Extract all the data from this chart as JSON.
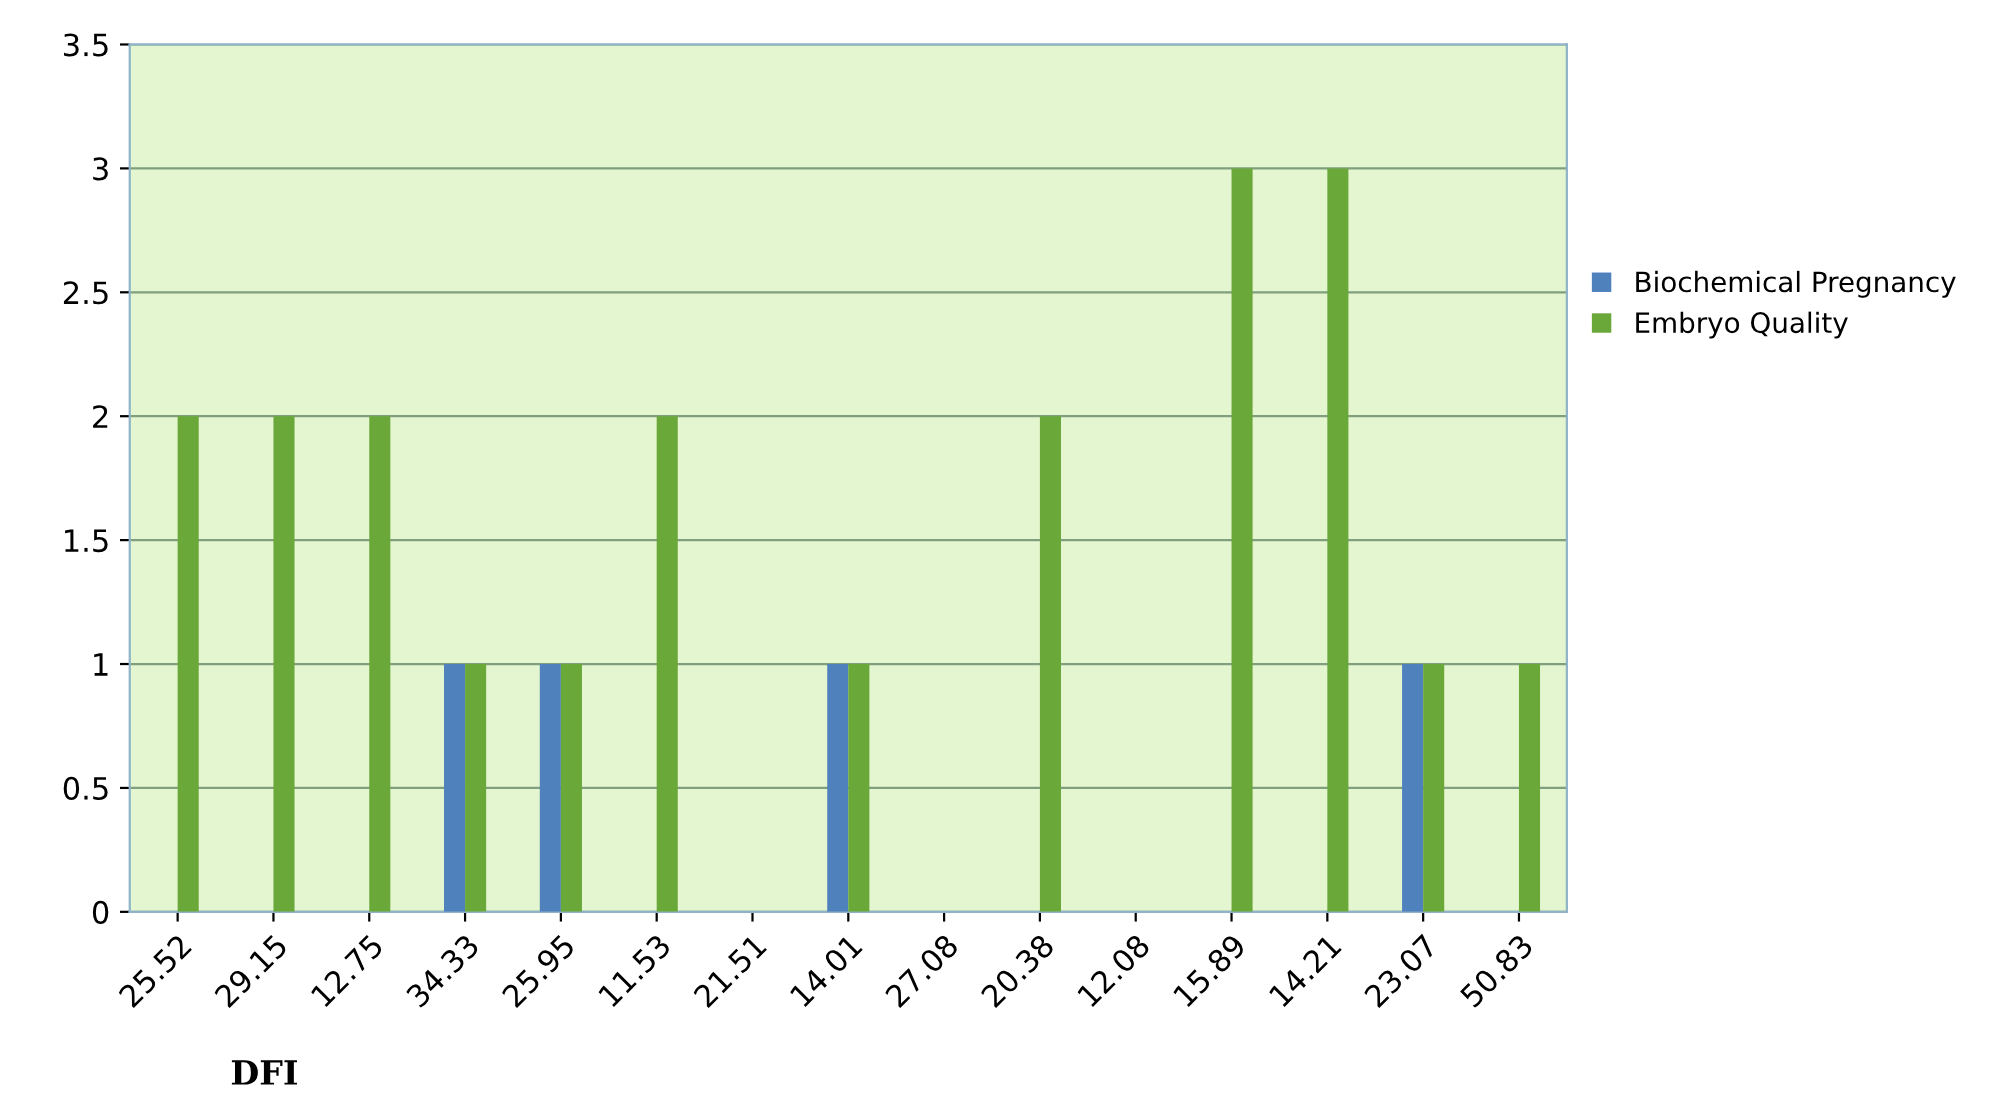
{
  "chart_data": {
    "type": "bar",
    "xlabel": "DFI",
    "categories": [
      "25.52",
      "29.15",
      "12.75",
      "34.33",
      "25.95",
      "11.53",
      "21.51",
      "14.01",
      "27.08",
      "20.38",
      "12.08",
      "15.89",
      "14.21",
      "23.07",
      "50.83"
    ],
    "series": [
      {
        "name": "Biochemical Pregnancy",
        "color": "#4f81bd",
        "values": [
          0,
          0,
          0,
          1,
          1,
          0,
          0,
          1,
          0,
          0,
          0,
          0,
          0,
          1,
          0
        ]
      },
      {
        "name": "Embryo Quality",
        "color": "#6aa83a",
        "values": [
          2,
          2,
          2,
          1,
          1,
          2,
          0,
          1,
          0,
          2,
          0,
          3,
          3,
          1,
          1
        ]
      }
    ],
    "ylim": [
      0,
      3.5
    ],
    "yticks": [
      0,
      0.5,
      1,
      1.5,
      2,
      2.5,
      3,
      3.5
    ],
    "grid": "y",
    "legend": "right"
  }
}
